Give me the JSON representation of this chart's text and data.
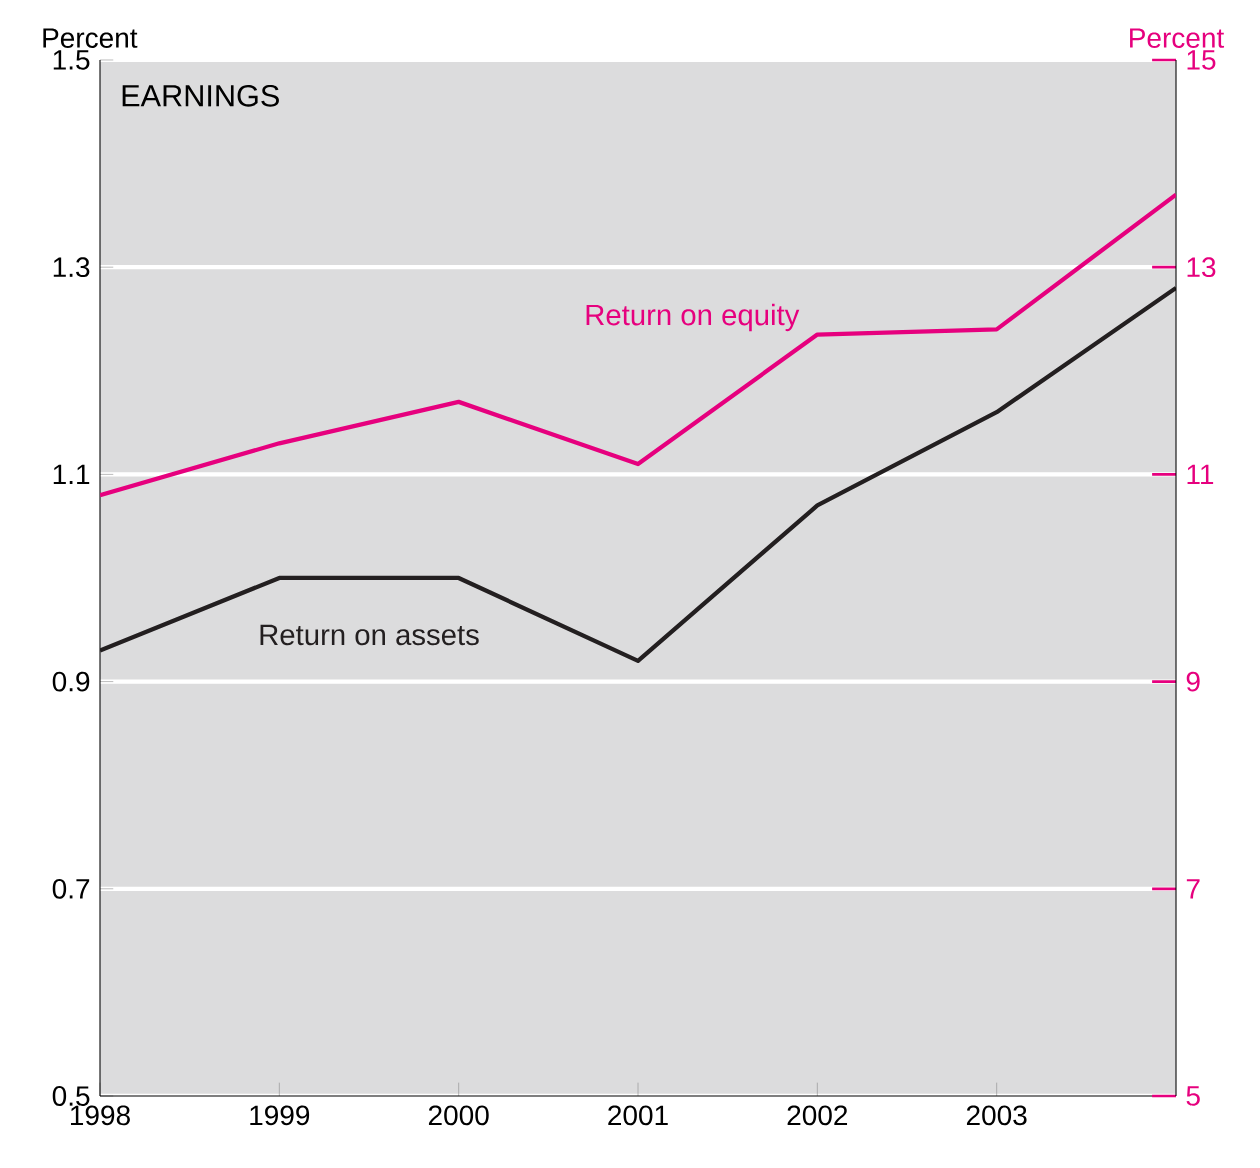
{
  "chart_data": {
    "type": "line",
    "title": "EARNINGS",
    "ylabel": "Percent",
    "y2label": "Percent",
    "x": [
      1998,
      1999,
      2000,
      2001,
      2002,
      2003,
      2004
    ],
    "xlim": [
      1998,
      2004
    ],
    "xticks": [
      1998,
      1999,
      2000,
      2001,
      2002,
      2003
    ],
    "ylim": [
      0.5,
      1.5
    ],
    "yticks": [
      0.5,
      0.7,
      0.9,
      1.1,
      1.3,
      1.5
    ],
    "y2lim": [
      5,
      15
    ],
    "y2ticks": [
      5,
      7,
      9,
      11,
      13,
      15
    ],
    "grid": "y",
    "series": [
      {
        "name": "Return on assets",
        "color": "#231f20",
        "values": [
          0.93,
          1.0,
          1.0,
          0.92,
          1.07,
          1.16,
          1.28
        ]
      },
      {
        "name": "Return on equity",
        "color": "#e6007e",
        "axis": "y2",
        "values": [
          10.8,
          11.3,
          11.7,
          11.1,
          12.35,
          12.4,
          13.7
        ]
      }
    ]
  }
}
